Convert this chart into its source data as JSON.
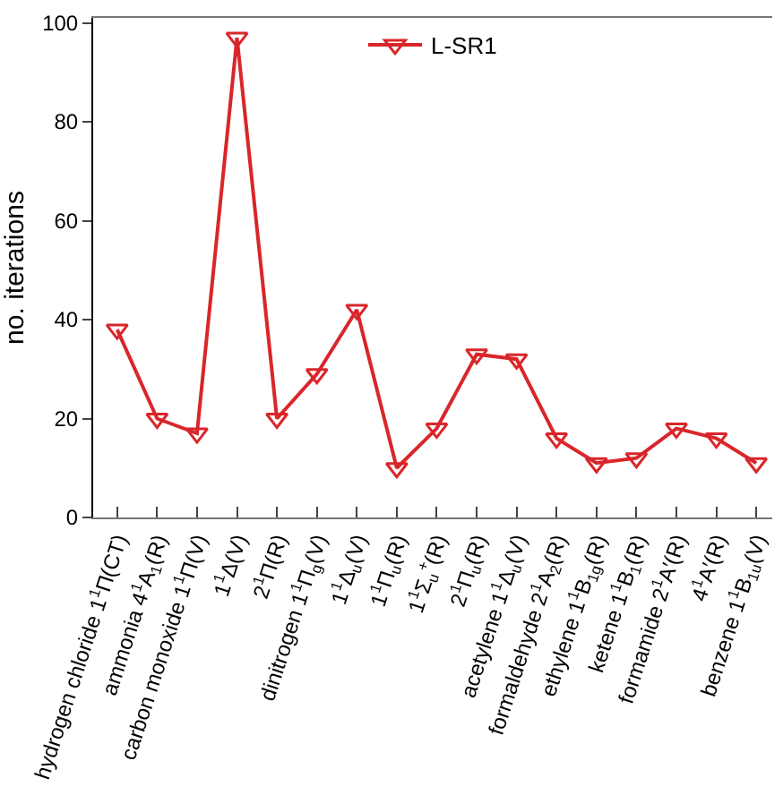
{
  "chart_data": {
    "type": "line",
    "ylabel": "no. iterations",
    "categories": [
      "hydrogen chloride 1$^{1}$Π(CT)",
      "ammonia 4$^{1}$A$_{1}$(R)",
      "carbon monoxide 1$^{1}$Π(V)",
      "1$^{1}$Δ(V)",
      "2$^{1}$Π(R)",
      "dinitrogen 1$^{1}$Π$_{g}$(V)",
      "1$^{1}$Δ$_{u}$(V)",
      "1$^{1}$Π$_{u}$(R)",
      "1$^{1}$Σ$_{u}$$^{+}$(R)",
      "2$^{1}$Π$_{u}$(R)",
      "acetylene 1$^{1}$Δ$_{u}$(V)",
      "formaldehyde 2$^{1}$A$_{2}$(R)",
      "ethylene 1$^{1}$B$_{1g}$(R)",
      "ketene 1$^{1}$B$_{1}$(R)",
      "formamide 2$^{1}$A′(R)",
      "4$^{1}$A′(R)",
      "benzene 1$^{1}$B$_{1u}$(V)"
    ],
    "series": [
      {
        "name": "L-SR1",
        "color": "#d9262a",
        "values": [
          38,
          20,
          17,
          97,
          20,
          29,
          42,
          10,
          18,
          33,
          32,
          16,
          11,
          12,
          18,
          16,
          11
        ]
      }
    ],
    "ylim": [
      0,
      101
    ],
    "yticks": [
      0,
      20,
      40,
      60,
      80,
      100
    ],
    "marker": "triangle",
    "legend": "top",
    "grid": false
  }
}
